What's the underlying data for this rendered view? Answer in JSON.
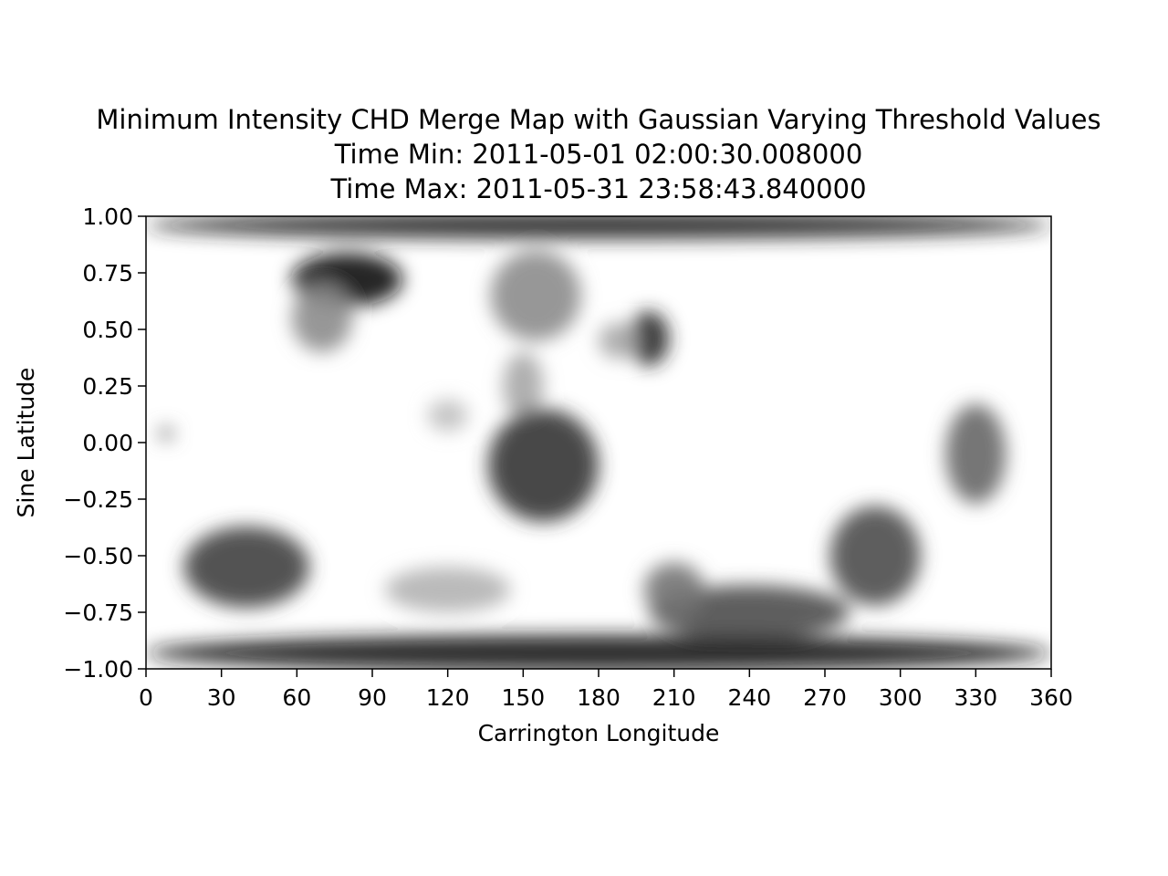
{
  "chart_data": {
    "type": "heatmap",
    "title": [
      "Minimum Intensity CHD Merge Map with Gaussian Varying Threshold Values",
      "Time Min: 2011-05-01 02:00:30.008000",
      "Time Max: 2011-05-31 23:58:43.840000"
    ],
    "xlabel": "Carrington Longitude",
    "ylabel": "Sine Latitude",
    "xlim": [
      0,
      360
    ],
    "ylim": [
      -1.0,
      1.0
    ],
    "xticks": [
      "0",
      "30",
      "60",
      "90",
      "120",
      "150",
      "180",
      "210",
      "240",
      "270",
      "300",
      "330",
      "360"
    ],
    "yticks": [
      "1.00",
      "0.75",
      "0.50",
      "0.25",
      "0.00",
      "−0.25",
      "−0.50",
      "−0.75",
      "−1.00"
    ],
    "colormap": "grayscale",
    "colors": {
      "low": "#000000",
      "high": "#ffffff"
    },
    "grid": false,
    "regions": [
      {
        "lon": 180,
        "lat": 0.96,
        "rx": 180,
        "ry": 0.06,
        "intensity": 0.85
      },
      {
        "lon": 80,
        "lat": 0.72,
        "rx": 22,
        "ry": 0.12,
        "intensity": 0.95
      },
      {
        "lon": 70,
        "lat": 0.55,
        "rx": 12,
        "ry": 0.15,
        "intensity": 0.45
      },
      {
        "lon": 155,
        "lat": 0.65,
        "rx": 18,
        "ry": 0.2,
        "intensity": 0.45
      },
      {
        "lon": 150,
        "lat": 0.25,
        "rx": 8,
        "ry": 0.15,
        "intensity": 0.35
      },
      {
        "lon": 158,
        "lat": -0.1,
        "rx": 22,
        "ry": 0.25,
        "intensity": 0.8
      },
      {
        "lon": 200,
        "lat": 0.46,
        "rx": 8,
        "ry": 0.12,
        "intensity": 0.85
      },
      {
        "lon": 188,
        "lat": 0.45,
        "rx": 8,
        "ry": 0.08,
        "intensity": 0.35
      },
      {
        "lon": 330,
        "lat": -0.05,
        "rx": 12,
        "ry": 0.22,
        "intensity": 0.6
      },
      {
        "lon": 290,
        "lat": -0.5,
        "rx": 18,
        "ry": 0.22,
        "intensity": 0.7
      },
      {
        "lon": 40,
        "lat": -0.55,
        "rx": 25,
        "ry": 0.18,
        "intensity": 0.75
      },
      {
        "lon": 240,
        "lat": -0.75,
        "rx": 40,
        "ry": 0.12,
        "intensity": 0.7
      },
      {
        "lon": 180,
        "lat": -0.93,
        "rx": 180,
        "ry": 0.08,
        "intensity": 0.9
      },
      {
        "lon": 120,
        "lat": 0.12,
        "rx": 8,
        "ry": 0.07,
        "intensity": 0.25
      },
      {
        "lon": 8,
        "lat": 0.04,
        "rx": 3,
        "ry": 0.03,
        "intensity": 0.55
      },
      {
        "lon": 120,
        "lat": -0.65,
        "rx": 25,
        "ry": 0.1,
        "intensity": 0.3
      },
      {
        "lon": 210,
        "lat": -0.65,
        "rx": 12,
        "ry": 0.12,
        "intensity": 0.55
      }
    ]
  }
}
